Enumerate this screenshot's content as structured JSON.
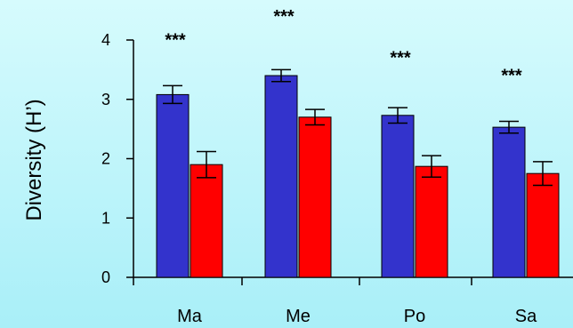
{
  "chart_data": {
    "type": "bar",
    "title": "",
    "xlabel": "",
    "ylabel": "Diversity (H’)",
    "ylim": [
      0,
      4
    ],
    "yticks": [
      0,
      1,
      2,
      3,
      4
    ],
    "categories": [
      "Ma",
      "Me",
      "Po",
      "Sa"
    ],
    "series": [
      {
        "values": [
          3.08,
          3.4,
          2.73,
          2.53
        ],
        "errors": [
          0.15,
          0.1,
          0.13,
          0.1
        ],
        "color": "#3333cc"
      },
      {
        "values": [
          1.9,
          2.7,
          1.87,
          1.75
        ],
        "errors": [
          0.22,
          0.13,
          0.18,
          0.2
        ],
        "color": "#ff0000"
      }
    ],
    "annotations": [
      "***",
      "***",
      "***",
      "***"
    ],
    "annotation_values": [
      4.05,
      4.45,
      3.75,
      3.45
    ],
    "grid": false,
    "legend": "none"
  }
}
